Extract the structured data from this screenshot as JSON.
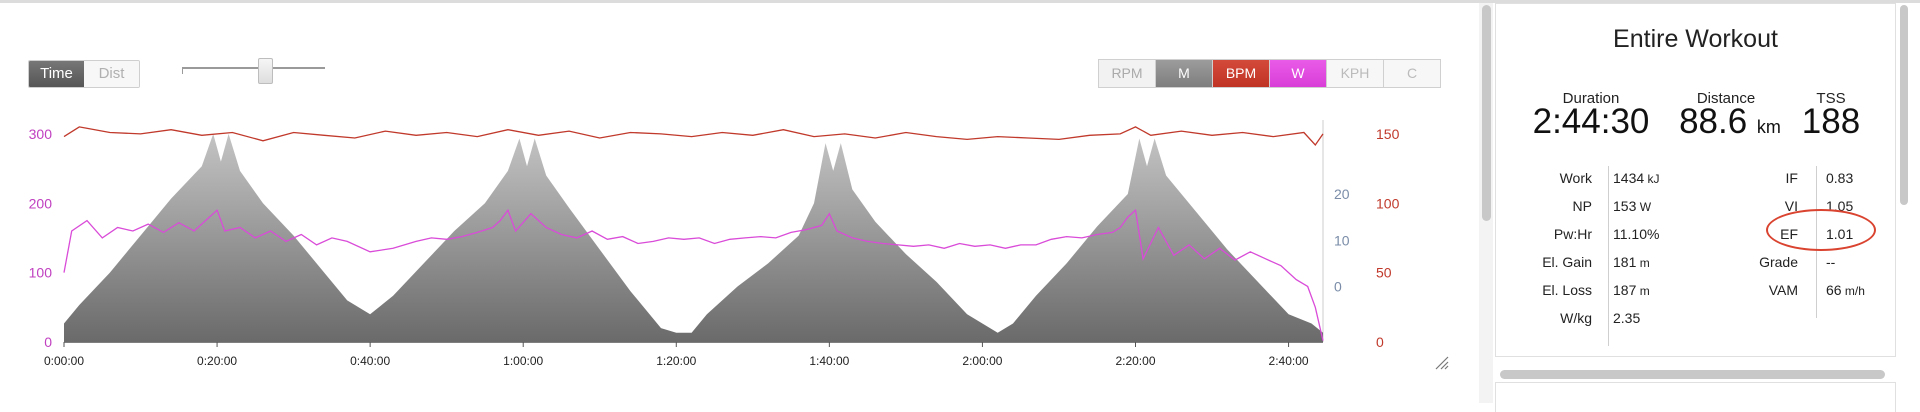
{
  "toggle": {
    "time_label": "Time",
    "dist_label": "Dist",
    "active": "Time"
  },
  "metric_buttons": [
    {
      "label": "RPM",
      "state": "off",
      "color": "#aaaaaa"
    },
    {
      "label": "M",
      "state": "on",
      "color": "#8a8a8a"
    },
    {
      "label": "BPM",
      "state": "on",
      "color": "#c83a2b"
    },
    {
      "label": "W",
      "state": "on",
      "color": "#d94bd8"
    },
    {
      "label": "KPH",
      "state": "off",
      "color": "#bbbbbb"
    },
    {
      "label": "C",
      "state": "off",
      "color": "#bbbbbb"
    }
  ],
  "chart_data": {
    "type": "area",
    "x_ticks": [
      "0:00:00",
      "0:20:00",
      "0:40:00",
      "1:00:00",
      "1:20:00",
      "1:40:00",
      "2:00:00",
      "2:20:00",
      "2:40:00"
    ],
    "x_range_minutes": [
      0,
      164.5
    ],
    "axes": {
      "power_left": {
        "ticks": [
          "300",
          "200",
          "100",
          "0"
        ],
        "range": [
          0,
          320
        ],
        "color": "#c040c0"
      },
      "elevation_inner_right": {
        "ticks": [
          "20",
          "10",
          "0"
        ],
        "range": [
          -12,
          36
        ],
        "color": "#7a8ca8"
      },
      "heart_rate_right": {
        "ticks": [
          "150",
          "100",
          "50",
          "0"
        ],
        "range": [
          0,
          160
        ],
        "color": "#c0392b"
      }
    },
    "series": [
      {
        "name": "M",
        "kind": "area",
        "color": "#8a8a8a",
        "points": [
          [
            0,
            -8
          ],
          [
            2,
            -4
          ],
          [
            6,
            3
          ],
          [
            10,
            11
          ],
          [
            14,
            19
          ],
          [
            18,
            26
          ],
          [
            19.5,
            33
          ],
          [
            20.5,
            27
          ],
          [
            21.5,
            33
          ],
          [
            23,
            25
          ],
          [
            26,
            18
          ],
          [
            30,
            11
          ],
          [
            34,
            3
          ],
          [
            37,
            -3
          ],
          [
            40,
            -6
          ],
          [
            43,
            -2
          ],
          [
            47,
            5
          ],
          [
            51,
            12
          ],
          [
            55,
            18
          ],
          [
            58,
            25
          ],
          [
            59.5,
            32
          ],
          [
            60.5,
            26
          ],
          [
            61.5,
            32
          ],
          [
            63,
            24
          ],
          [
            66,
            17
          ],
          [
            70,
            8
          ],
          [
            74,
            -1
          ],
          [
            78,
            -9
          ],
          [
            80,
            -10
          ],
          [
            82,
            -10
          ],
          [
            84,
            -6
          ],
          [
            88,
            0
          ],
          [
            92,
            5
          ],
          [
            96,
            11
          ],
          [
            98,
            18
          ],
          [
            99.5,
            31
          ],
          [
            100.5,
            25
          ],
          [
            101.5,
            31
          ],
          [
            103,
            21
          ],
          [
            106,
            14
          ],
          [
            110,
            7
          ],
          [
            114,
            1
          ],
          [
            118,
            -6
          ],
          [
            122,
            -10
          ],
          [
            124,
            -8
          ],
          [
            127,
            -2
          ],
          [
            131,
            5
          ],
          [
            135,
            13
          ],
          [
            139,
            20
          ],
          [
            140.5,
            32
          ],
          [
            141.5,
            26
          ],
          [
            142.5,
            32
          ],
          [
            144,
            24
          ],
          [
            148,
            16
          ],
          [
            152,
            8
          ],
          [
            156,
            1
          ],
          [
            160,
            -6
          ],
          [
            163,
            -8
          ],
          [
            164.5,
            -10
          ]
        ]
      },
      {
        "name": "BPM",
        "kind": "line",
        "color": "#c0392b",
        "points": [
          [
            0,
            148
          ],
          [
            2,
            155
          ],
          [
            6,
            151
          ],
          [
            10,
            150
          ],
          [
            14,
            153
          ],
          [
            18,
            149
          ],
          [
            22,
            151
          ],
          [
            26,
            145
          ],
          [
            30,
            151
          ],
          [
            34,
            149
          ],
          [
            38,
            147
          ],
          [
            42,
            152
          ],
          [
            46,
            149
          ],
          [
            50,
            151
          ],
          [
            54,
            148
          ],
          [
            58,
            153
          ],
          [
            62,
            149
          ],
          [
            66,
            152
          ],
          [
            70,
            147
          ],
          [
            74,
            151
          ],
          [
            78,
            150
          ],
          [
            82,
            148
          ],
          [
            86,
            151
          ],
          [
            90,
            149
          ],
          [
            94,
            153
          ],
          [
            98,
            148
          ],
          [
            102,
            150
          ],
          [
            106,
            147
          ],
          [
            110,
            151
          ],
          [
            114,
            148
          ],
          [
            118,
            146
          ],
          [
            122,
            148
          ],
          [
            126,
            147
          ],
          [
            130,
            146
          ],
          [
            134,
            149
          ],
          [
            138,
            150
          ],
          [
            140,
            155
          ],
          [
            142,
            149
          ],
          [
            146,
            152
          ],
          [
            150,
            149
          ],
          [
            154,
            151
          ],
          [
            158,
            148
          ],
          [
            162,
            151
          ],
          [
            163.5,
            142
          ],
          [
            164.5,
            150
          ]
        ]
      },
      {
        "name": "W",
        "kind": "line",
        "color": "#d94bd8",
        "points": [
          [
            0,
            100
          ],
          [
            1,
            160
          ],
          [
            3,
            175
          ],
          [
            5,
            150
          ],
          [
            7,
            165
          ],
          [
            9,
            160
          ],
          [
            11,
            170
          ],
          [
            13,
            158
          ],
          [
            15,
            172
          ],
          [
            17,
            160
          ],
          [
            19,
            180
          ],
          [
            20,
            190
          ],
          [
            21,
            160
          ],
          [
            23,
            165
          ],
          [
            25,
            150
          ],
          [
            27,
            160
          ],
          [
            29,
            145
          ],
          [
            31,
            155
          ],
          [
            33,
            140
          ],
          [
            35,
            150
          ],
          [
            37,
            145
          ],
          [
            40,
            130
          ],
          [
            43,
            135
          ],
          [
            46,
            145
          ],
          [
            48,
            150
          ],
          [
            50,
            148
          ],
          [
            52,
            152
          ],
          [
            54,
            158
          ],
          [
            56,
            165
          ],
          [
            57,
            175
          ],
          [
            58,
            190
          ],
          [
            59,
            160
          ],
          [
            61,
            185
          ],
          [
            63,
            165
          ],
          [
            65,
            155
          ],
          [
            67,
            150
          ],
          [
            69,
            160
          ],
          [
            71,
            148
          ],
          [
            73,
            152
          ],
          [
            75,
            142
          ],
          [
            77,
            145
          ],
          [
            79,
            150
          ],
          [
            81,
            148
          ],
          [
            83,
            150
          ],
          [
            85,
            142
          ],
          [
            87,
            148
          ],
          [
            89,
            150
          ],
          [
            91,
            152
          ],
          [
            93,
            150
          ],
          [
            95,
            158
          ],
          [
            97,
            162
          ],
          [
            99,
            168
          ],
          [
            100,
            185
          ],
          [
            101,
            160
          ],
          [
            103,
            150
          ],
          [
            105,
            145
          ],
          [
            107,
            142
          ],
          [
            109,
            140
          ],
          [
            111,
            138
          ],
          [
            113,
            140
          ],
          [
            115,
            135
          ],
          [
            117,
            142
          ],
          [
            119,
            138
          ],
          [
            121,
            140
          ],
          [
            123,
            135
          ],
          [
            125,
            140
          ],
          [
            127,
            140
          ],
          [
            129,
            148
          ],
          [
            131,
            152
          ],
          [
            133,
            150
          ],
          [
            135,
            155
          ],
          [
            137,
            158
          ],
          [
            138,
            165
          ],
          [
            139,
            180
          ],
          [
            140,
            190
          ],
          [
            141,
            120
          ],
          [
            143,
            165
          ],
          [
            145,
            125
          ],
          [
            147,
            140
          ],
          [
            149,
            120
          ],
          [
            151,
            135
          ],
          [
            153,
            118
          ],
          [
            155,
            130
          ],
          [
            157,
            120
          ],
          [
            159,
            110
          ],
          [
            161,
            90
          ],
          [
            162.5,
            80
          ],
          [
            163.5,
            50
          ],
          [
            164.5,
            2
          ]
        ]
      }
    ]
  },
  "panel": {
    "title": "Entire Workout",
    "headline": [
      {
        "label": "Duration",
        "value": "2:44:30",
        "unit": ""
      },
      {
        "label": "Distance",
        "value": "88.6",
        "unit": "km"
      },
      {
        "label": "TSS",
        "value": "188",
        "unit": ""
      }
    ],
    "left_rows": [
      {
        "label": "Work",
        "value": "1434",
        "unit": "kJ"
      },
      {
        "label": "NP",
        "value": "153",
        "unit": "W"
      },
      {
        "label": "Pw:Hr",
        "value": "11.10%",
        "unit": ""
      },
      {
        "label": "El. Gain",
        "value": "181",
        "unit": "m"
      },
      {
        "label": "El. Loss",
        "value": "187",
        "unit": "m"
      },
      {
        "label": "W/kg",
        "value": "2.35",
        "unit": ""
      }
    ],
    "right_rows": [
      {
        "label": "IF",
        "value": "0.83",
        "unit": ""
      },
      {
        "label": "VI",
        "value": "1.05",
        "unit": ""
      },
      {
        "label": "EF",
        "value": "1.01",
        "unit": ""
      },
      {
        "label": "Grade",
        "value": "--",
        "unit": ""
      },
      {
        "label": "VAM",
        "value": "66",
        "unit": "m/h"
      }
    ],
    "highlight": "EF"
  }
}
